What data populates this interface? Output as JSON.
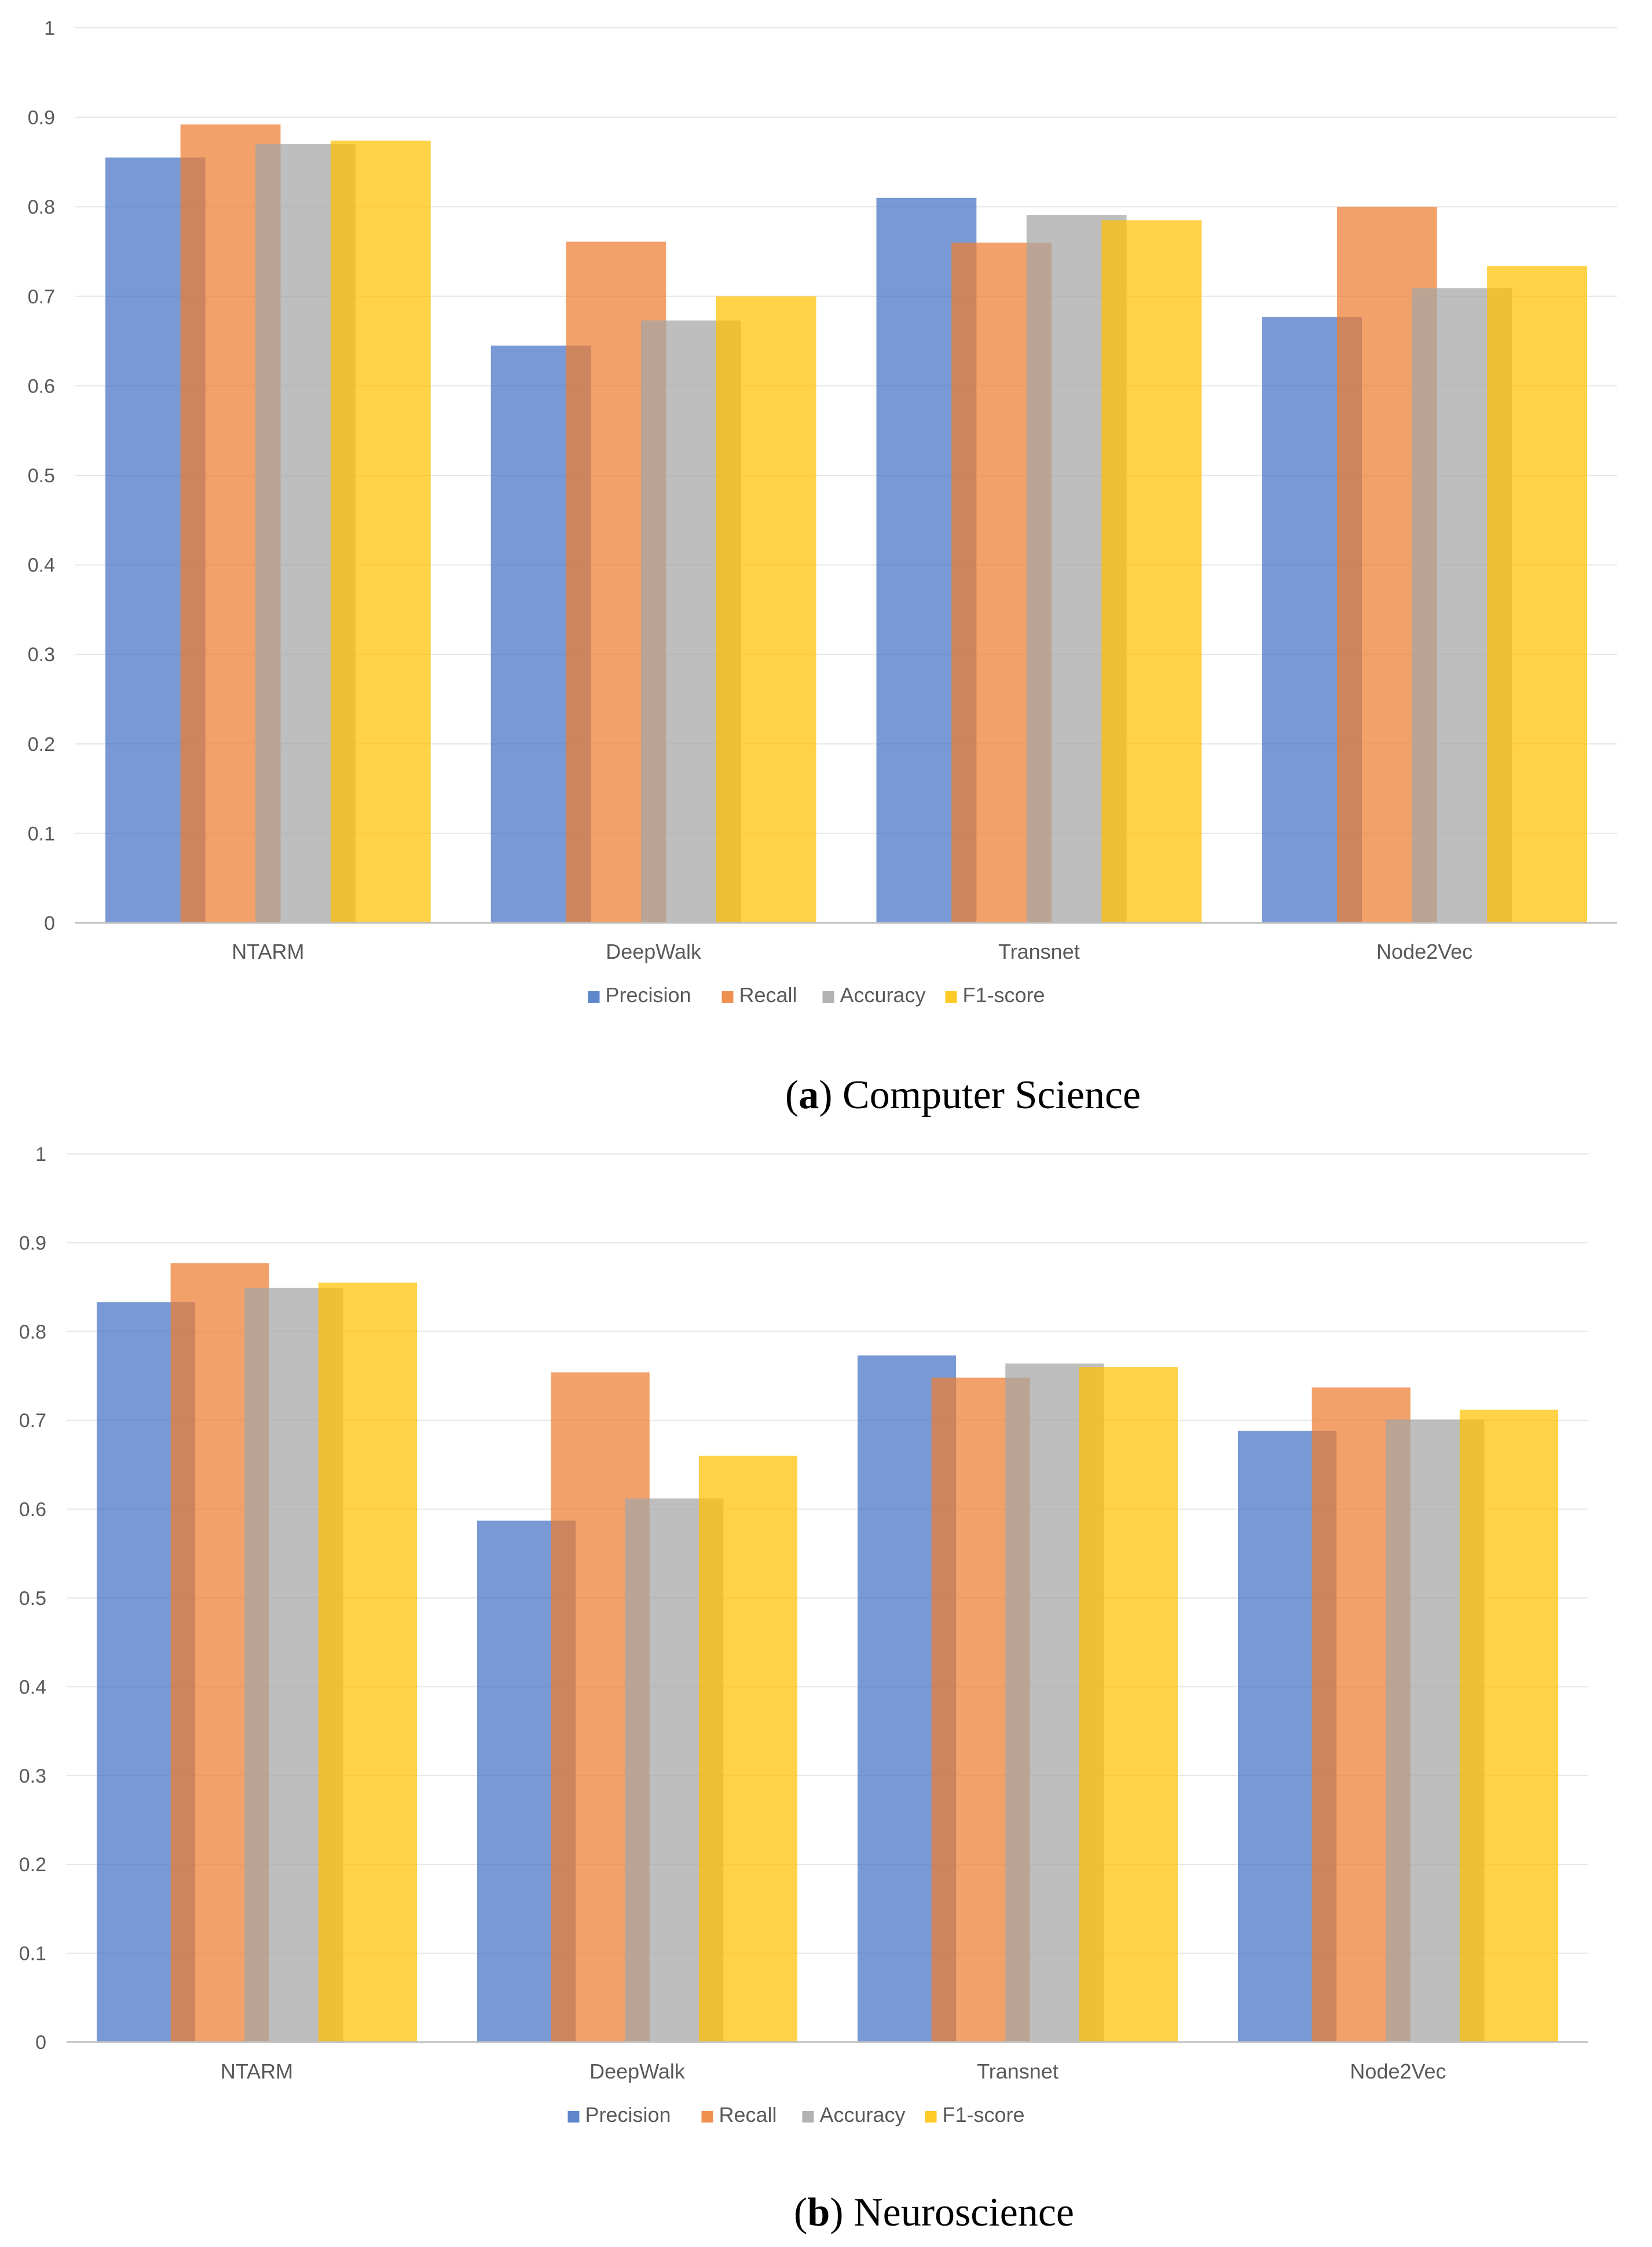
{
  "chart_data": [
    {
      "type": "bar",
      "caption": {
        "open": "(",
        "letter": "a",
        "rest": ") Computer Science"
      },
      "categories": [
        "NTARM",
        "DeepWalk",
        "Transnet",
        "Node2Vec"
      ],
      "series": [
        {
          "name": "Precision",
          "color": "#4472C4",
          "values": [
            0.855,
            0.645,
            0.81,
            0.677
          ]
        },
        {
          "name": "Recall",
          "color": "#ED7D31",
          "values": [
            0.892,
            0.761,
            0.76,
            0.8
          ]
        },
        {
          "name": "Accuracy",
          "color": "#A5A5A5",
          "values": [
            0.87,
            0.673,
            0.791,
            0.709
          ]
        },
        {
          "name": "F1-score",
          "color": "#FFC000",
          "values": [
            0.874,
            0.7,
            0.785,
            0.734
          ]
        }
      ],
      "ylim": [
        0,
        1
      ],
      "yticks": [
        "0",
        "0.1",
        "0.2",
        "0.3",
        "0.4",
        "0.5",
        "0.6",
        "0.7",
        "0.8",
        "0.9",
        "1"
      ],
      "grid": true,
      "legend": "bottom"
    },
    {
      "type": "bar",
      "caption": {
        "open": "(",
        "letter": "b",
        "rest": ") Neuroscience"
      },
      "categories": [
        "NTARM",
        "DeepWalk",
        "Transnet",
        "Node2Vec"
      ],
      "series": [
        {
          "name": "Precision",
          "color": "#4472C4",
          "values": [
            0.833,
            0.587,
            0.773,
            0.688
          ]
        },
        {
          "name": "Recall",
          "color": "#ED7D31",
          "values": [
            0.877,
            0.754,
            0.748,
            0.737
          ]
        },
        {
          "name": "Accuracy",
          "color": "#A5A5A5",
          "values": [
            0.849,
            0.612,
            0.764,
            0.701
          ]
        },
        {
          "name": "F1-score",
          "color": "#FFC000",
          "values": [
            0.855,
            0.66,
            0.76,
            0.712
          ]
        }
      ],
      "ylim": [
        0,
        1
      ],
      "yticks": [
        "0",
        "0.1",
        "0.2",
        "0.3",
        "0.4",
        "0.5",
        "0.6",
        "0.7",
        "0.8",
        "0.9",
        "1"
      ],
      "grid": true,
      "legend": "bottom"
    }
  ]
}
